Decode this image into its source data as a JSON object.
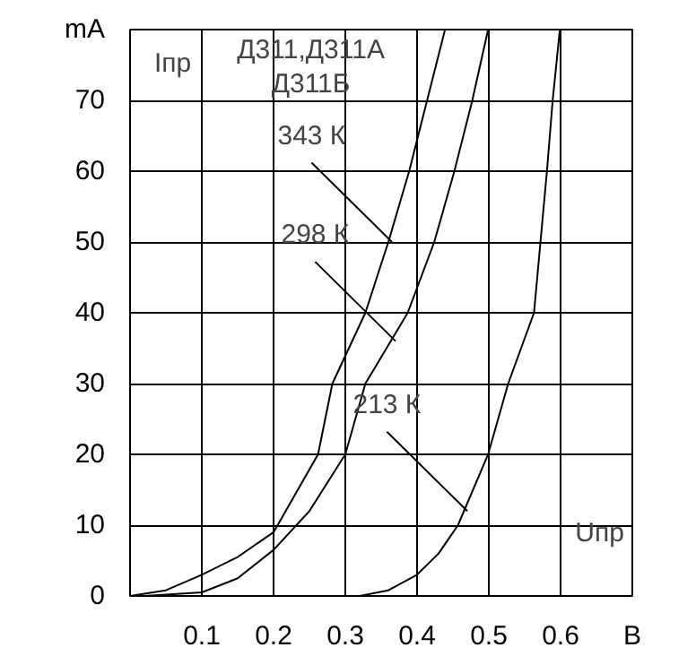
{
  "chart_data": {
    "type": "line",
    "title": "Д311,Д311А\nД311Б",
    "xlabel": "Uпр",
    "ylabel": "Iпр",
    "xlim": [
      0,
      0.7
    ],
    "ylim": [
      0,
      80
    ],
    "xticks": [
      0.1,
      0.2,
      0.3,
      0.4,
      0.5,
      0.6,
      {
        "value": 0.7,
        "label": "В"
      }
    ],
    "yticks": [
      0,
      10,
      20,
      30,
      40,
      50,
      60,
      70,
      {
        "value": 80,
        "label": "mA"
      }
    ],
    "grid": true,
    "marker": "none",
    "line_style": "solid",
    "series": [
      {
        "color": "#000000",
        "x": [
          0,
          0.05,
          0.1,
          0.15,
          0.2,
          0.262,
          0.282,
          0.328,
          0.36,
          0.389,
          0.414,
          0.439
        ],
        "values": [
          0,
          0.8,
          3,
          5.5,
          9,
          20,
          30,
          40,
          50,
          60,
          70,
          80
        ]
      },
      {
        "color": "#000000",
        "x": [
          0.02,
          0.1,
          0.15,
          0.2,
          0.25,
          0.3,
          0.328,
          0.387,
          0.424,
          0.452,
          0.477,
          0.499
        ],
        "values": [
          0,
          0.5,
          2.5,
          6.5,
          12,
          20,
          30,
          40,
          50,
          60,
          70,
          80
        ]
      },
      {
        "color": "#000000",
        "x": [
          0.32,
          0.36,
          0.4,
          0.43,
          0.457,
          0.499,
          0.527,
          0.563,
          0.572,
          0.581,
          0.589,
          0.599
        ],
        "values": [
          0,
          0.8,
          3,
          6,
          10,
          20,
          30,
          40,
          50,
          60,
          70,
          80
        ]
      }
    ],
    "annotations": [
      {
        "text": "343 К",
        "x": 0.365,
        "y": 50
      },
      {
        "text": "298 К",
        "x": 0.37,
        "y": 36
      },
      {
        "text": "213 К",
        "x": 0.47,
        "y": 12
      }
    ]
  }
}
